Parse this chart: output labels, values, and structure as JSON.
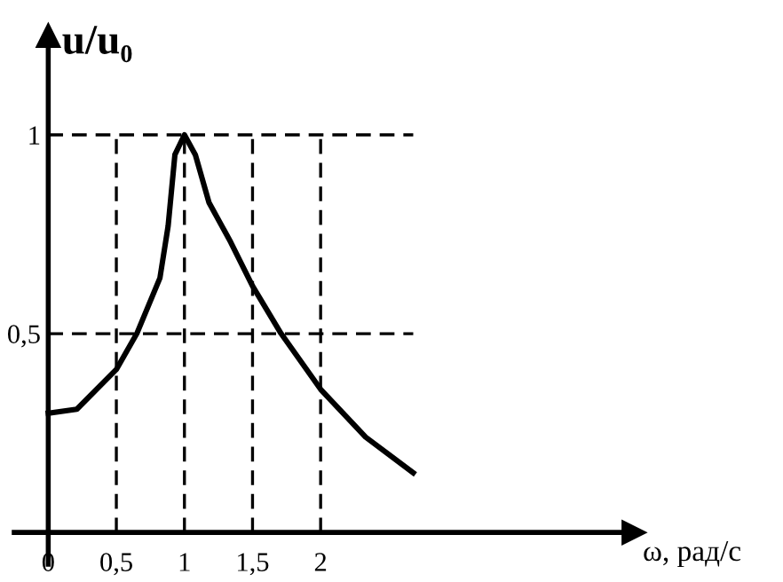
{
  "chart_data": {
    "type": "line",
    "xlabel": "ω, рад/с",
    "ylabel": "u/u₀",
    "x": [
      0,
      0.21,
      0.5,
      0.65,
      0.82,
      0.88,
      0.93,
      1.0,
      1.08,
      1.18,
      1.34,
      1.5,
      1.71,
      2.0,
      2.33,
      2.68
    ],
    "series": [
      {
        "color": "#000000",
        "values": [
          0.3,
          0.31,
          0.41,
          0.5,
          0.64,
          0.77,
          0.95,
          1.0,
          0.95,
          0.83,
          0.73,
          0.62,
          0.5,
          0.36,
          0.24,
          0.15
        ]
      }
    ],
    "xlim": [
      -0.25,
      4.3
    ],
    "ylim": [
      -0.08,
      1.25
    ],
    "xticks": [
      0,
      {
        "value": 0.5,
        "label": "0,5"
      },
      1,
      {
        "value": 1.5,
        "label": "1,5"
      },
      2
    ],
    "yticks": [
      {
        "value": 0.5,
        "label": "0,5"
      },
      1
    ],
    "ref_lines": [
      {
        "axis": "y",
        "value": 1,
        "color": "#000000",
        "line_style": "dashed"
      },
      {
        "axis": "y",
        "value": 0.5,
        "color": "#000000",
        "line_style": "dashed"
      },
      {
        "axis": "x",
        "value": 0.5,
        "color": "#000000",
        "line_style": "dashed"
      },
      {
        "axis": "x",
        "value": 1,
        "color": "#000000",
        "line_style": "dashed"
      },
      {
        "axis": "x",
        "value": 1.5,
        "color": "#000000",
        "line_style": "dashed"
      },
      {
        "axis": "x",
        "value": 2,
        "color": "#000000",
        "line_style": "dashed"
      }
    ],
    "grid": false,
    "legend": false,
    "marker": "none",
    "line_style": "solid"
  }
}
